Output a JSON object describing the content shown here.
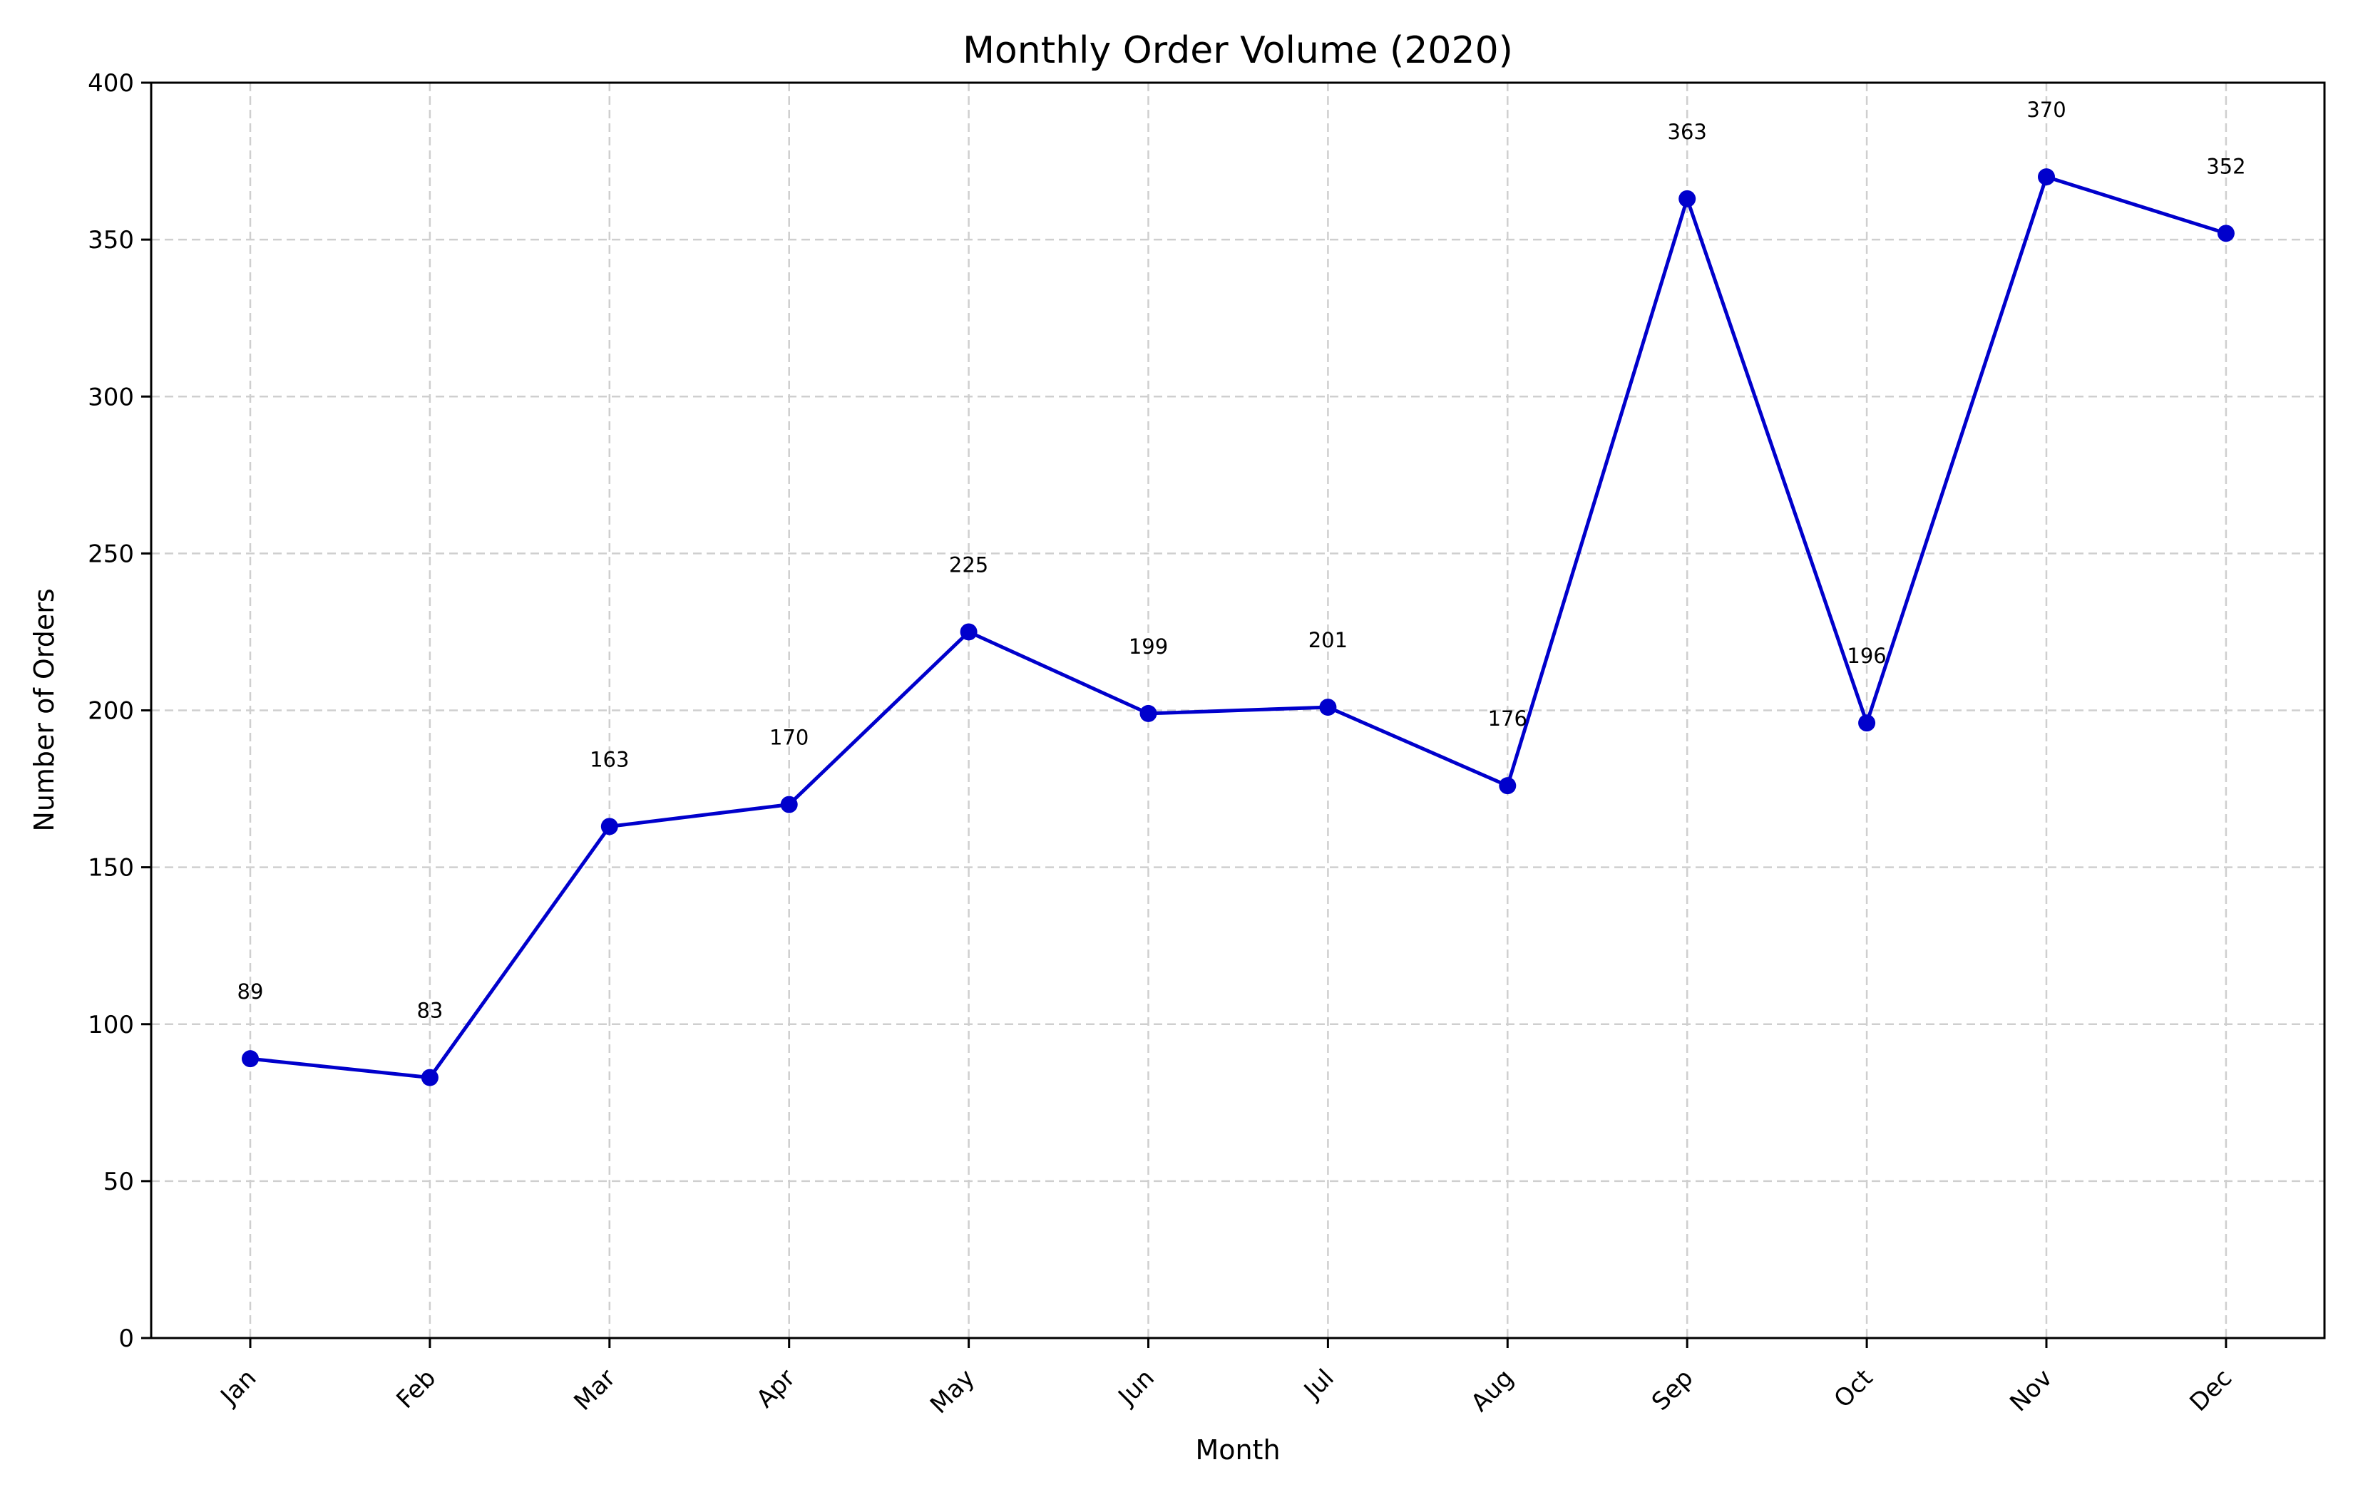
{
  "chart_data": {
    "type": "line",
    "title": "Monthly Order Volume (2020)",
    "xlabel": "Month",
    "ylabel": "Number of Orders",
    "categories": [
      "Jan",
      "Feb",
      "Mar",
      "Apr",
      "May",
      "Jun",
      "Jul",
      "Aug",
      "Sep",
      "Oct",
      "Nov",
      "Dec"
    ],
    "series": [
      {
        "values": [
          89,
          83,
          163,
          170,
          225,
          199,
          201,
          176,
          363,
          196,
          370,
          352
        ]
      }
    ],
    "data_labels": [
      "89",
      "83",
      "163",
      "170",
      "225",
      "199",
      "201",
      "176",
      "363",
      "196",
      "370",
      "352"
    ],
    "ylim": [
      0,
      400
    ],
    "yticks": [
      0,
      50,
      100,
      150,
      200,
      250,
      300,
      350,
      400
    ],
    "grid": true,
    "line_color": "#0000cc",
    "marker": "circle"
  }
}
